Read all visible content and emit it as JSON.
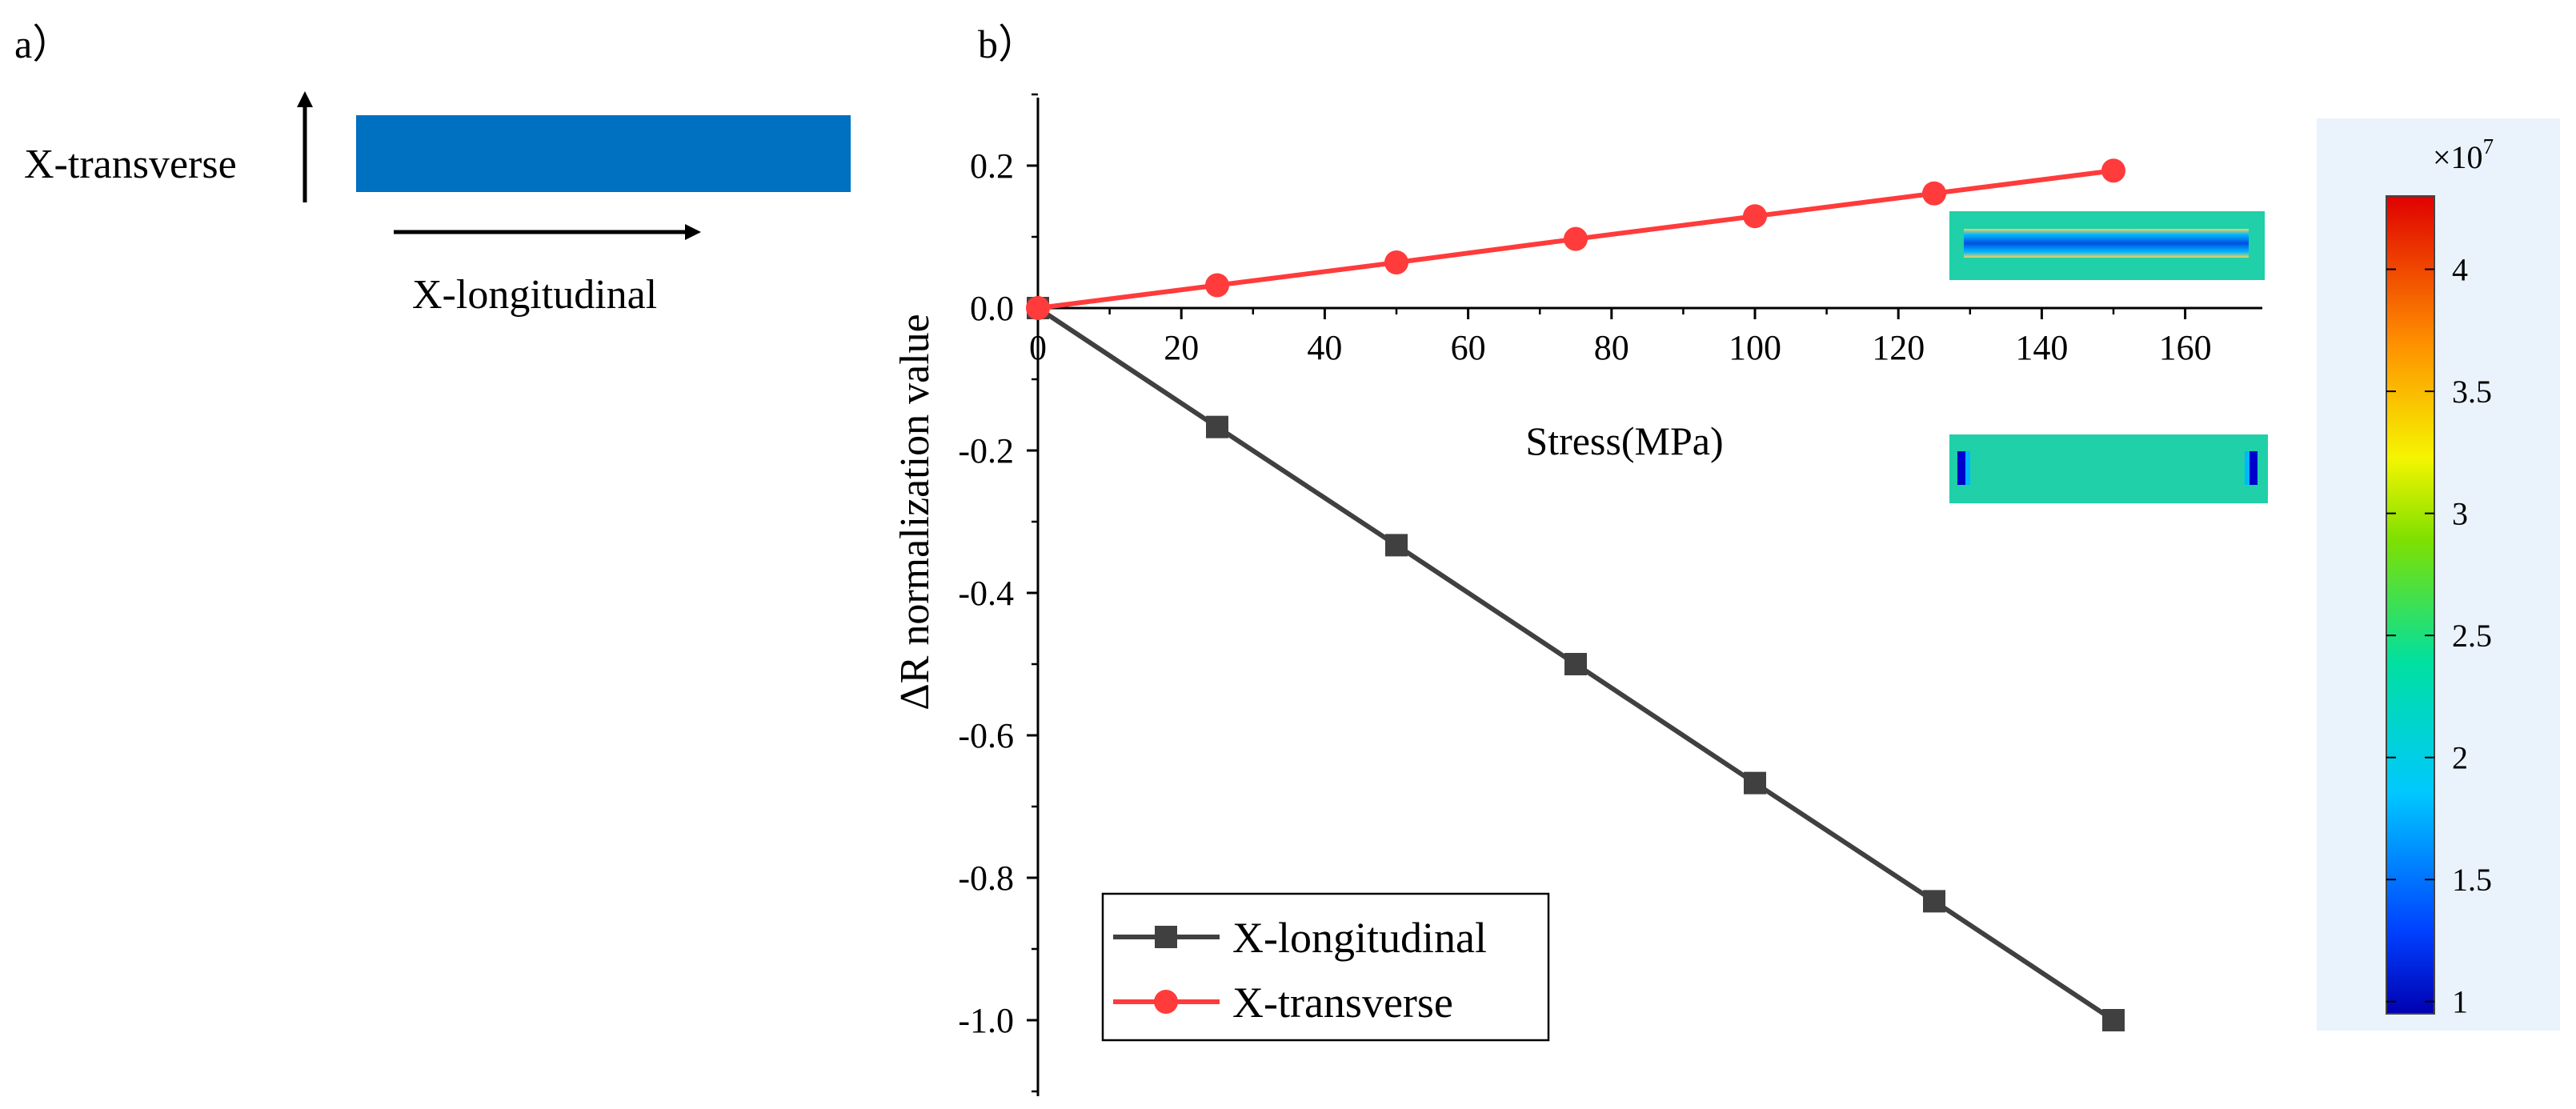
{
  "panel_a": {
    "label": "a）",
    "transverse_label": "X-transverse",
    "longitudinal_label": "X-longitudinal",
    "bar_color": "#0070c0"
  },
  "panel_b": {
    "label": "b）"
  },
  "chart_data": {
    "type": "line",
    "title": "",
    "xlabel": "Stress(MPa)",
    "ylabel": "ΔR normalization value",
    "xlim": [
      0,
      170
    ],
    "ylim": [
      -1.1,
      0.3
    ],
    "x_ticks": [
      0,
      20,
      40,
      60,
      80,
      100,
      120,
      140,
      160
    ],
    "y_ticks": [
      0.2,
      0.0,
      -0.2,
      -0.4,
      -0.6,
      -0.8,
      -1.0
    ],
    "x_tick_labels": [
      "0",
      "20",
      "40",
      "60",
      "80",
      "100",
      "120",
      "140",
      "160"
    ],
    "y_tick_labels": [
      "0.2",
      "0.0",
      "-0.2",
      "-0.4",
      "-0.6",
      "-0.8",
      "-1.0"
    ],
    "legend_position": "bottom-left",
    "series": [
      {
        "name": "X-longitudinal",
        "marker": "square",
        "color": "#404040",
        "x": [
          0,
          25,
          50,
          75,
          100,
          125,
          150
        ],
        "y": [
          0.0,
          -0.167,
          -0.333,
          -0.5,
          -0.667,
          -0.833,
          -1.0
        ]
      },
      {
        "name": "X-transverse",
        "marker": "circle",
        "color": "#ff3b3b",
        "x": [
          0,
          25,
          50,
          75,
          100,
          125,
          150
        ],
        "y": [
          0.0,
          0.032,
          0.064,
          0.097,
          0.129,
          0.161,
          0.193
        ]
      }
    ]
  },
  "colorbar": {
    "exponent_label": "×10",
    "exponent_power": "7",
    "range": [
      0.95,
      4.3
    ],
    "tick_values": [
      1,
      1.5,
      2,
      2.5,
      3,
      3.5,
      4
    ],
    "tick_labels": [
      "1",
      "1.5",
      "2",
      "2.5",
      "3",
      "3.5",
      "4"
    ],
    "panel_background": "#eaf3fb"
  }
}
